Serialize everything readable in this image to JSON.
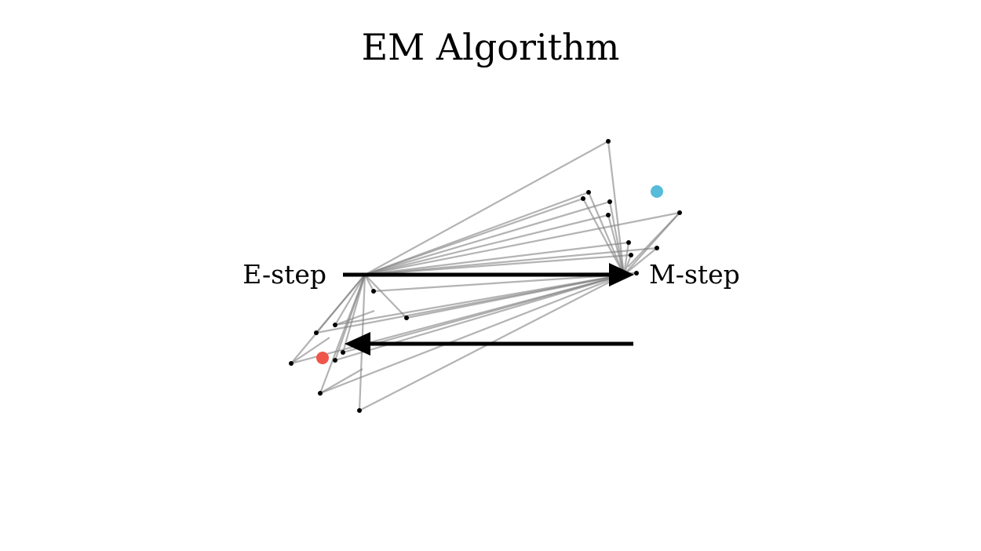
{
  "title": "EM Algorithm",
  "e_step_label": "E-step",
  "m_step_label": "M-step",
  "colors": {
    "background": "#ffffff",
    "edge": "#808080",
    "point": "#000000",
    "arrow": "#000000",
    "cluster_a": "#f0554a",
    "cluster_b": "#56bcd9"
  }
}
